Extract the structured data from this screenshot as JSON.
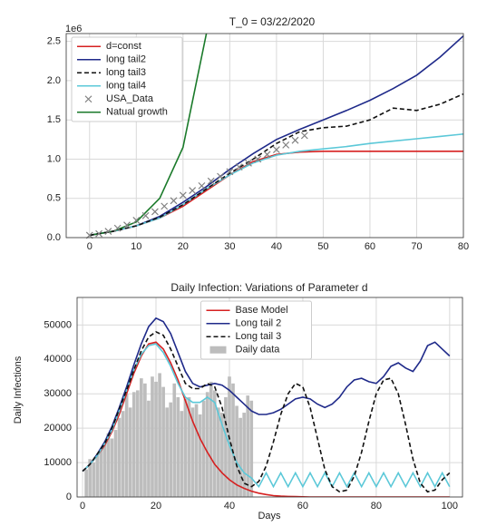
{
  "chart_data": [
    {
      "type": "line",
      "title": "T_0 = 03/22/2020",
      "y_offset_label": "1e6",
      "xlim": [
        -5,
        80
      ],
      "xticks": [
        0,
        10,
        20,
        30,
        40,
        50,
        60,
        70,
        80
      ],
      "ylim": [
        0,
        2.6
      ],
      "yticks": [
        {
          "value": 0,
          "label": "0.0"
        },
        0.5,
        {
          "value": 1,
          "label": "1.0"
        },
        1.5,
        {
          "value": 2,
          "label": "2.0"
        },
        2.5
      ],
      "grid": true,
      "legend": "upper-left",
      "x": [
        0,
        5,
        10,
        15,
        20,
        25,
        30,
        35,
        40,
        45,
        50,
        55,
        60,
        65,
        70,
        75,
        80
      ],
      "series": [
        {
          "name": "d=const",
          "color": "#d62020",
          "style": "solid",
          "values": [
            0.03,
            0.08,
            0.15,
            0.25,
            0.4,
            0.6,
            0.8,
            0.97,
            1.06,
            1.09,
            1.1,
            1.1,
            1.1,
            1.1,
            1.1,
            1.1,
            1.1
          ]
        },
        {
          "name": "long tail2",
          "color": "#1f2a8a",
          "style": "solid",
          "values": [
            0.03,
            0.08,
            0.15,
            0.27,
            0.45,
            0.65,
            0.87,
            1.07,
            1.25,
            1.38,
            1.5,
            1.62,
            1.75,
            1.9,
            2.07,
            2.3,
            2.57
          ]
        },
        {
          "name": "long tail3",
          "color": "#111111",
          "style": "dashed",
          "values": [
            0.03,
            0.08,
            0.15,
            0.26,
            0.42,
            0.62,
            0.82,
            1.0,
            1.2,
            1.35,
            1.4,
            1.42,
            1.5,
            1.65,
            1.62,
            1.7,
            1.83
          ]
        },
        {
          "name": "long tail4",
          "color": "#5bc8d8",
          "style": "solid",
          "values": [
            0.03,
            0.08,
            0.15,
            0.25,
            0.42,
            0.62,
            0.8,
            0.95,
            1.05,
            1.1,
            1.13,
            1.16,
            1.2,
            1.23,
            1.26,
            1.29,
            1.32
          ]
        },
        {
          "name": "USA_Data",
          "color": "#808080",
          "style": "markers",
          "x": [
            0,
            2,
            4,
            6,
            8,
            10,
            12,
            14,
            16,
            18,
            20,
            22,
            24,
            26,
            28,
            30,
            32,
            34,
            36,
            38,
            40,
            42,
            44,
            46
          ],
          "values": [
            0.03,
            0.05,
            0.08,
            0.12,
            0.16,
            0.22,
            0.28,
            0.33,
            0.4,
            0.47,
            0.54,
            0.6,
            0.66,
            0.72,
            0.78,
            0.84,
            0.9,
            0.95,
            1.0,
            1.06,
            1.12,
            1.18,
            1.24,
            1.3
          ]
        },
        {
          "name": "Natual growth",
          "color": "#1a7a2a",
          "style": "solid",
          "values": [
            0.03,
            0.08,
            0.2,
            0.5,
            1.15,
            2.6,
            null,
            null,
            null,
            null,
            null,
            null,
            null,
            null,
            null,
            null,
            null
          ]
        }
      ]
    },
    {
      "type": "line",
      "title": "Daily Infection: Variations of Parameter d",
      "x_label": "Days",
      "y_label": "Daily Infections",
      "xlim": [
        -1.5,
        103.5
      ],
      "xticks": [
        0,
        20,
        40,
        60,
        80,
        100
      ],
      "ylim": [
        0,
        58000
      ],
      "yticks": [
        0,
        10000,
        20000,
        30000,
        40000,
        50000
      ],
      "grid": true,
      "legend": "upper-center",
      "x": [
        0,
        2,
        4,
        6,
        8,
        10,
        12,
        14,
        16,
        18,
        20,
        22,
        24,
        26,
        28,
        30,
        32,
        34,
        36,
        38,
        40,
        42,
        44,
        46,
        48,
        50,
        52,
        54,
        56,
        58,
        60,
        62,
        64,
        66,
        68,
        70,
        72,
        74,
        76,
        78,
        80,
        82,
        84,
        86,
        88,
        90,
        92,
        94,
        96,
        98,
        100
      ],
      "series": [
        {
          "name": "Base Model",
          "color": "#d62020",
          "style": "solid",
          "values": [
            7500,
            9500,
            12000,
            15000,
            19000,
            24000,
            30000,
            36000,
            41000,
            44500,
            45000,
            43000,
            39000,
            34000,
            28000,
            22000,
            17000,
            13000,
            9500,
            7000,
            5000,
            3500,
            2500,
            1700,
            1100,
            700,
            400,
            250,
            150,
            100,
            50,
            0,
            0,
            0,
            0,
            0,
            0,
            0,
            0,
            0,
            0,
            0,
            0,
            0,
            0,
            0,
            0,
            0,
            0,
            0,
            0
          ]
        },
        {
          "name": "Long tail 2",
          "color": "#1f2a8a",
          "style": "solid",
          "values": [
            7500,
            9500,
            12500,
            16000,
            20500,
            26000,
            32000,
            38500,
            44500,
            49500,
            52000,
            51000,
            47500,
            42000,
            36500,
            33000,
            32000,
            32500,
            33000,
            32500,
            31000,
            29000,
            27000,
            25000,
            24000,
            24000,
            24500,
            25500,
            27000,
            28500,
            29000,
            28500,
            27000,
            26000,
            27000,
            29000,
            32000,
            34000,
            34500,
            33500,
            33000,
            35000,
            38000,
            39000,
            37500,
            36500,
            39500,
            44000,
            45000,
            43000,
            41000
          ]
        },
        {
          "name": "Long tail 3",
          "color": "#111111",
          "style": "dashed",
          "values": [
            7500,
            9500,
            12500,
            15500,
            20000,
            25500,
            31000,
            37000,
            42500,
            46500,
            48000,
            47000,
            43000,
            38000,
            33000,
            31500,
            31500,
            33000,
            32000,
            26000,
            17000,
            9000,
            4000,
            3000,
            4500,
            9000,
            16000,
            24000,
            30000,
            33000,
            32000,
            26000,
            17000,
            8000,
            3000,
            1500,
            2000,
            6000,
            13000,
            22000,
            30000,
            34000,
            34500,
            30000,
            21000,
            11000,
            4000,
            1500,
            2000,
            5000,
            7000
          ]
        },
        {
          "name": "Daily data",
          "color": "#bdbdbd",
          "style": "bars",
          "x": [
            1,
            2,
            3,
            4,
            5,
            6,
            7,
            8,
            9,
            10,
            11,
            12,
            13,
            14,
            15,
            16,
            17,
            18,
            19,
            20,
            21,
            22,
            23,
            24,
            25,
            26,
            27,
            28,
            29,
            30,
            31,
            32,
            33,
            34,
            35,
            36,
            37,
            38,
            39,
            40,
            41,
            42,
            43,
            44,
            45,
            46
          ],
          "values": [
            8000,
            11000,
            10000,
            12000,
            14000,
            15500,
            18500,
            17000,
            19500,
            23000,
            25000,
            30000,
            26000,
            30500,
            31000,
            34500,
            33000,
            28000,
            35000,
            33500,
            36000,
            32000,
            26000,
            27500,
            33000,
            29000,
            25000,
            28500,
            29000,
            26000,
            27000,
            24000,
            28000,
            30500,
            33500,
            31000,
            26000,
            24500,
            29000,
            35000,
            33000,
            26500,
            23000,
            24500,
            29500,
            28000
          ]
        },
        {
          "color": "#5bc8d8",
          "style": "solid",
          "values": [
            7500,
            9500,
            12000,
            15500,
            19500,
            25000,
            31000,
            37000,
            41500,
            44000,
            44500,
            42000,
            38000,
            33000,
            29000,
            27500,
            27500,
            29000,
            27500,
            21000,
            15000,
            10000,
            7000,
            5500,
            3000,
            7000,
            3000,
            7000,
            3000,
            7000,
            3000,
            7000,
            3000,
            7000,
            3000,
            7000,
            3000,
            7000,
            3000,
            7000,
            3000,
            7000,
            3000,
            7000,
            3000,
            7000,
            3000,
            7000,
            3000,
            7000,
            3000
          ]
        }
      ]
    }
  ]
}
